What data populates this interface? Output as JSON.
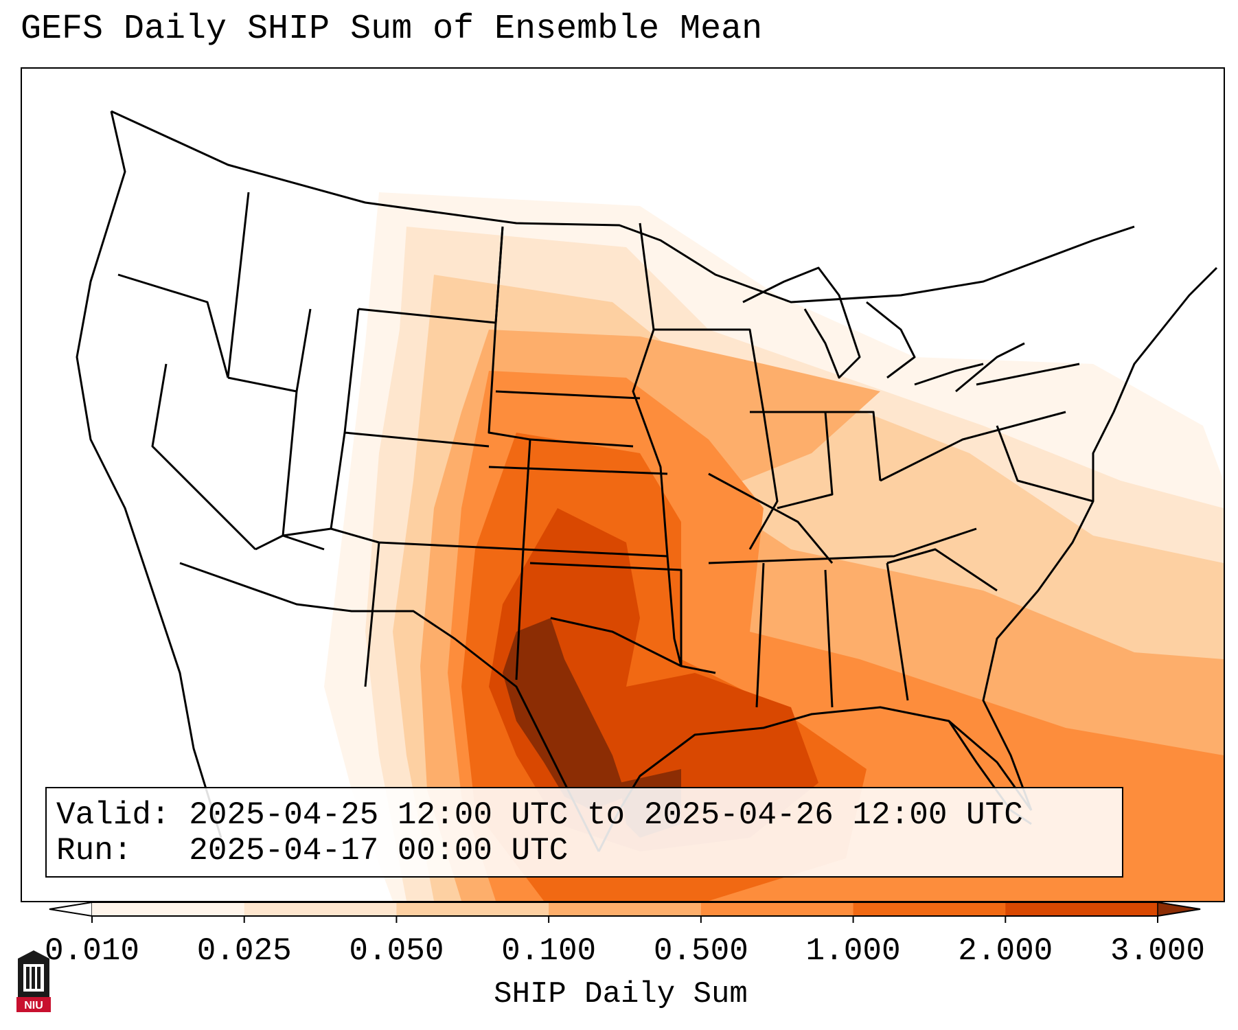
{
  "title": "GEFS Daily SHIP Sum of Ensemble Mean",
  "info": {
    "valid_label": "Valid:",
    "valid_value": "2025-04-25 12:00 UTC to 2025-04-26 12:00 UTC",
    "run_label": "Run:",
    "run_value": "2025-04-17 00:00 UTC"
  },
  "colorbar": {
    "label": "SHIP Daily Sum",
    "ticks": [
      "0.010",
      "0.025",
      "0.050",
      "0.100",
      "0.500",
      "1.000",
      "2.000",
      "3.000"
    ],
    "colors": [
      "#fff5eb",
      "#fee6ce",
      "#fdd0a2",
      "#fdae6b",
      "#fd8d3c",
      "#f16913",
      "#d94801",
      "#8c2d04"
    ],
    "extend": "both"
  },
  "colors": {
    "level_1": "#fff5eb",
    "level_2": "#fee6ce",
    "level_3": "#fdd0a2",
    "level_4": "#fdae6b",
    "level_5": "#fd8d3c",
    "level_6": "#f16913",
    "level_7": "#d94801",
    "level_8": "#8c2d04",
    "boundaries": "#000000"
  },
  "logo": {
    "text": "NIU",
    "icon": "university-building-icon"
  }
}
